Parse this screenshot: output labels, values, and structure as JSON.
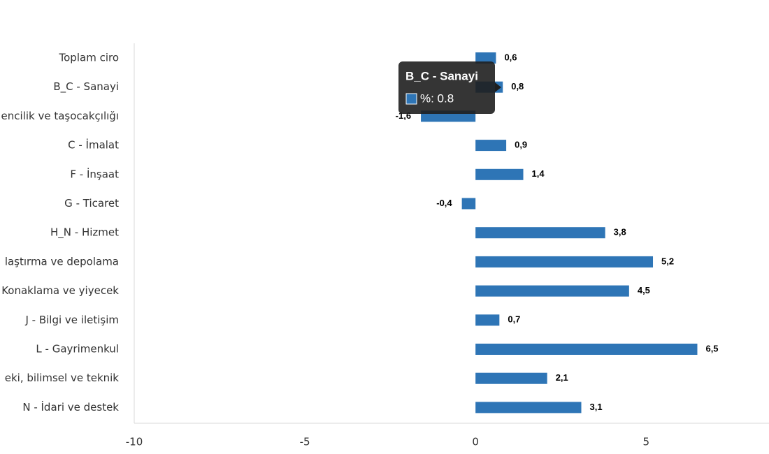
{
  "chart_data": {
    "type": "bar",
    "orientation": "horizontal",
    "categories": [
      "Toplam ciro",
      "B_C - Sanayi",
      "encilik ve taşocakçılığı",
      "C - İmalat",
      "F - İnşaat",
      "G - Ticaret",
      "H_N - Hizmet",
      "laştırma ve depolama",
      "Konaklama ve yiyecek",
      "J - Bilgi ve iletişim",
      "L - Gayrimenkul",
      "eki, bilimsel ve teknik",
      "N - İdari ve destek"
    ],
    "values": [
      0.6,
      0.8,
      -1.6,
      0.9,
      1.4,
      -0.4,
      3.8,
      5.2,
      4.5,
      0.7,
      6.5,
      2.1,
      3.1
    ],
    "value_labels": [
      "0,6",
      "0,8",
      "-1,6",
      "0,9",
      "1,4",
      "-0,4",
      "3,8",
      "5,2",
      "4,5",
      "0,7",
      "6,5",
      "2,1",
      "3,1"
    ],
    "color": "#2e75b6",
    "xlim": [
      -10,
      8.6
    ],
    "xticks": [
      -10,
      -5,
      0,
      5
    ],
    "tooltip": {
      "title": "B_C - Sanayi",
      "text": "%: 0.8"
    }
  }
}
